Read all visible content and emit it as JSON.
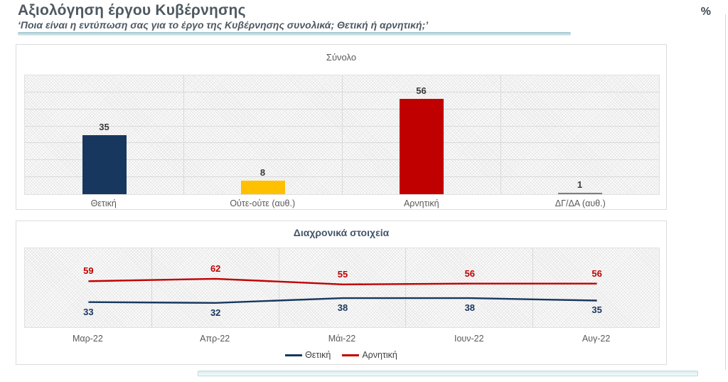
{
  "header": {
    "title": "Αξιολόγηση έργου Κυβέρνησης",
    "subtitle": "‘Ποια είναι η εντύπωση σας για το έργο της Κυβέρνησης συνολικά; Θετική ή αρνητική;’",
    "unit_label": "%"
  },
  "colors": {
    "positive_navy": "#17375e",
    "neutral_yellow": "#ffc000",
    "negative_red": "#c00000",
    "dk_na_gray": "#7f7f7f",
    "accent_teal": "#b9d8dc"
  },
  "chart_data": [
    {
      "type": "bar",
      "title": "Σύνολο",
      "categories": [
        "Θετική",
        "Ούτε-ούτε (αυθ.)",
        "Αρνητική",
        "ΔΓ/ΔΑ (αυθ.)"
      ],
      "values": [
        35,
        8,
        56,
        1
      ],
      "bar_colors": [
        "#17375e",
        "#ffc000",
        "#c00000",
        "#7f7f7f"
      ],
      "ylim": [
        0,
        70
      ],
      "grid_step": 10,
      "grid": true,
      "legend": false,
      "data_labels": true
    },
    {
      "type": "line",
      "title": "Διαχρονικά στοιχεία",
      "x": [
        "Μαρ-22",
        "Απρ-22",
        "Μάι-22",
        "Ιουν-22",
        "Αυγ-22"
      ],
      "series": [
        {
          "name": "Θετική",
          "values": [
            33,
            32,
            38,
            38,
            35
          ],
          "color": "#17375e"
        },
        {
          "name": "Αρνητική",
          "values": [
            59,
            62,
            55,
            56,
            56
          ],
          "color": "#c00000"
        }
      ],
      "ylim": [
        0,
        100
      ],
      "grid": "vertical",
      "legend_position": "bottom",
      "data_labels": true
    }
  ]
}
